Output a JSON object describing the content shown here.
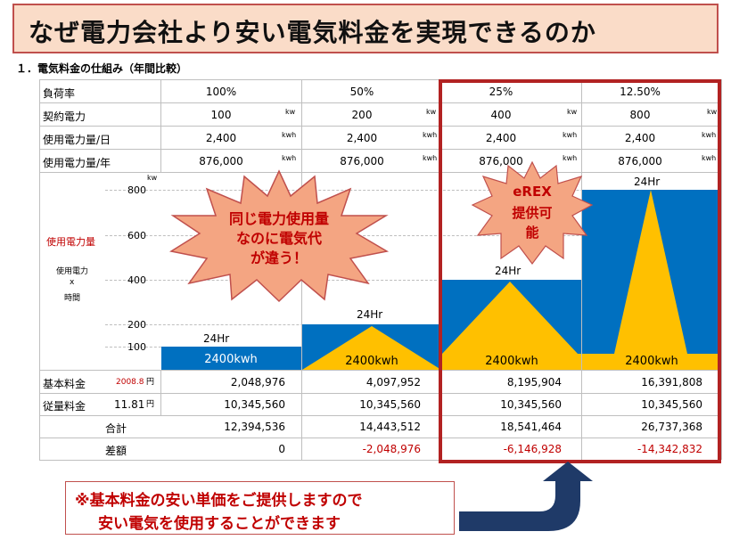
{
  "title": "なぜ電力会社より安い電気料金を実現できるのか",
  "subtitle": "１．電気料金の仕組み（年間比較）",
  "rows": {
    "load_factor": {
      "label": "負荷率",
      "values": [
        "100%",
        "50%",
        "25%",
        "12.50%"
      ]
    },
    "contract": {
      "label": "契約電力",
      "values": [
        "100",
        "200",
        "400",
        "800"
      ],
      "unit": "kw"
    },
    "daily": {
      "label": "使用電力量/日",
      "values": [
        "2,400",
        "2,400",
        "2,400",
        "2,400"
      ],
      "unit": "kwh"
    },
    "annual": {
      "label": "使用電力量/年",
      "values": [
        "876,000",
        "876,000",
        "876,000",
        "876,000"
      ],
      "unit": "kwh"
    }
  },
  "chart": {
    "kw_unit": "kw",
    "y_ticks": [
      "800",
      "600",
      "400",
      "200",
      "100"
    ],
    "label_main": "使用電力量",
    "label_sub1": "使用電力",
    "label_sub2": "x",
    "label_sub3": "時間",
    "kwh_label": "2400kwh",
    "hr_label": "24Hr",
    "contract_kw": [
      100,
      200,
      400,
      800
    ]
  },
  "fees": {
    "base": {
      "label": "基本料金",
      "rate": "2008.8",
      "unit": "円",
      "values": [
        "2,048,976",
        "4,097,952",
        "8,195,904",
        "16,391,808"
      ]
    },
    "usage": {
      "label": "従量料金",
      "rate": "11.81",
      "unit": "円",
      "values": [
        "10,345,560",
        "10,345,560",
        "10,345,560",
        "10,345,560"
      ]
    },
    "total": {
      "label": "合計",
      "values": [
        "12,394,536",
        "14,443,512",
        "18,541,464",
        "26,737,368"
      ]
    },
    "diff": {
      "label": "差額",
      "values": [
        "0",
        "-2,048,976",
        "-6,146,928",
        "-14,342,832"
      ]
    }
  },
  "burst": {
    "line1": "同じ電力使用量",
    "line2": "なのに電気代",
    "line3": "が違う！"
  },
  "erex": {
    "line1": "eREX",
    "line2": "提供可",
    "line3": "能"
  },
  "note": {
    "line1": "※基本料金の安い単価をご提供しますので",
    "line2": "安い電気を使用することができます"
  },
  "colors": {
    "blue": "#0070c0",
    "gold": "#ffc000",
    "red": "#b22222",
    "title_bg": "#fadcc8"
  }
}
